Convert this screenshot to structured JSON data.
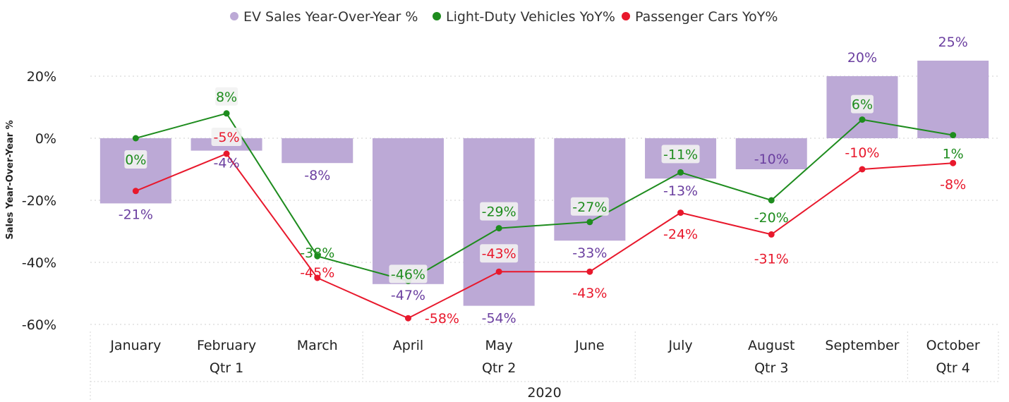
{
  "chart_data": {
    "type": "bar+line",
    "title": "",
    "xlabel": "",
    "ylabel": "Sales Year-Over-Year %",
    "ylim": [
      -60,
      25
    ],
    "yticks": [
      20,
      0,
      -20,
      -40,
      -60
    ],
    "ytick_labels": [
      "20%",
      "0%",
      "-20%",
      "-40%",
      "-60%"
    ],
    "legend_position": "top-center",
    "categories": [
      "January",
      "February",
      "March",
      "April",
      "May",
      "June",
      "July",
      "August",
      "September",
      "October"
    ],
    "quarters": [
      {
        "label": "Qtr 1",
        "months": [
          "January",
          "February",
          "March"
        ]
      },
      {
        "label": "Qtr 2",
        "months": [
          "April",
          "May",
          "June"
        ]
      },
      {
        "label": "Qtr 3",
        "months": [
          "July",
          "August",
          "September"
        ]
      },
      {
        "label": "Qtr 4",
        "months": [
          "October"
        ]
      }
    ],
    "year_label": "2020",
    "series": [
      {
        "name": "EV Sales Year-Over-Year %",
        "kind": "bar",
        "color": "#BCA9D6",
        "label_color": "#6B3FA0",
        "values": [
          -21,
          -4,
          -8,
          -47,
          -54,
          -33,
          -13,
          -10,
          20,
          25
        ],
        "labels": [
          "-21%",
          "-4%",
          "-8%",
          "-47%",
          "-54%",
          "-33%",
          "-13%",
          "-10%",
          "20%",
          "25%"
        ]
      },
      {
        "name": "Light-Duty Vehicles YoY%",
        "kind": "line",
        "color": "#1E8C1E",
        "label_color": "#1E8C1E",
        "values": [
          0,
          8,
          -38,
          -46,
          -29,
          -27,
          -11,
          -20,
          6,
          1
        ],
        "labels": [
          "0%",
          "8%",
          "-38%",
          "-46%",
          "-29%",
          "-27%",
          "-11%",
          "-20%",
          "6%",
          "1%"
        ]
      },
      {
        "name": "Passenger Cars YoY%",
        "kind": "line",
        "color": "#E8182C",
        "label_color": "#E8182C",
        "values": [
          -17,
          -5,
          -45,
          -58,
          -43,
          -43,
          -24,
          -31,
          -10,
          -8
        ],
        "labels": [
          "-17%",
          "-5%",
          "-45%",
          "-58%",
          "-43%",
          "-43%",
          "-24%",
          "-31%",
          "-10%",
          "-8%"
        ]
      }
    ],
    "visible_labels": {
      "Passenger Cars YoY%": [
        false,
        true,
        true,
        true,
        true,
        true,
        true,
        true,
        true,
        true
      ]
    }
  }
}
